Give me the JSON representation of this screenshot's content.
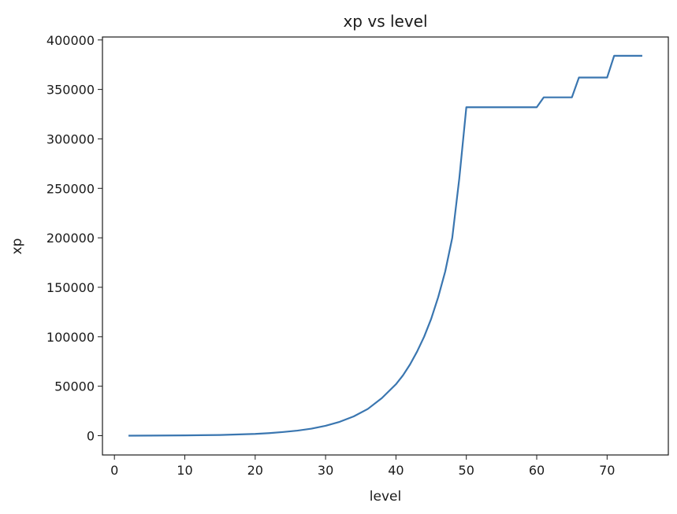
{
  "chart_data": {
    "type": "line",
    "title": "xp vs level",
    "xlabel": "level",
    "ylabel": "xp",
    "xlim": [
      -1.7,
      78.7
    ],
    "ylim": [
      -19500,
      403000
    ],
    "xticks": [
      0,
      10,
      20,
      30,
      40,
      50,
      60,
      70
    ],
    "yticks": [
      0,
      50000,
      100000,
      150000,
      200000,
      250000,
      300000,
      350000,
      400000
    ],
    "grid": false,
    "line_color": "#3a76b0",
    "series": [
      {
        "points": [
          [
            2,
            0
          ],
          [
            5,
            100
          ],
          [
            10,
            300
          ],
          [
            15,
            700
          ],
          [
            20,
            1800
          ],
          [
            22,
            2600
          ],
          [
            24,
            3700
          ],
          [
            26,
            5100
          ],
          [
            28,
            7100
          ],
          [
            30,
            10000
          ],
          [
            32,
            14000
          ],
          [
            34,
            19500
          ],
          [
            36,
            27000
          ],
          [
            38,
            38000
          ],
          [
            40,
            52000
          ],
          [
            41,
            61000
          ],
          [
            42,
            72000
          ],
          [
            43,
            85000
          ],
          [
            44,
            100000
          ],
          [
            45,
            118000
          ],
          [
            46,
            140000
          ],
          [
            47,
            166000
          ],
          [
            48,
            200000
          ],
          [
            49,
            260000
          ],
          [
            50,
            332000
          ],
          [
            60,
            332000
          ],
          [
            61,
            342000
          ],
          [
            65,
            342000
          ],
          [
            66,
            362000
          ],
          [
            70,
            362000
          ],
          [
            71,
            384000
          ],
          [
            75,
            384000
          ]
        ]
      }
    ]
  }
}
